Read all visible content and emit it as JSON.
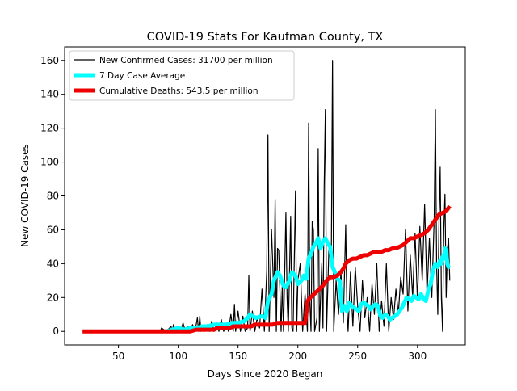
{
  "chart_data": {
    "type": "line",
    "title": "COVID-19 Stats For Kaufman County, TX",
    "xlabel": "Days Since 2020 Began",
    "ylabel": "New COVID-19 Cases",
    "xlim": [
      5,
      340
    ],
    "ylim": [
      -8,
      168
    ],
    "xticks": [
      50,
      100,
      150,
      200,
      250,
      300
    ],
    "yticks": [
      0,
      20,
      40,
      60,
      80,
      100,
      120,
      140,
      160
    ],
    "grid": false,
    "legend_position": "top-left",
    "series": [
      {
        "name": "New Confirmed Cases: 31700 per million",
        "color": "#000000",
        "line_width": "thin",
        "x": [
          20,
          85,
          86,
          90,
          94,
          95,
          96,
          98,
          100,
          102,
          104,
          106,
          108,
          110,
          112,
          114,
          116,
          117,
          118,
          119,
          120,
          122,
          124,
          126,
          128,
          130,
          132,
          134,
          136,
          138,
          140,
          142,
          144,
          146,
          147,
          148,
          150,
          152,
          154,
          156,
          158,
          159,
          160,
          162,
          164,
          166,
          168,
          170,
          172,
          174,
          175,
          176,
          178,
          180,
          181,
          182,
          183,
          184,
          186,
          187,
          188,
          190,
          191,
          192,
          194,
          195,
          196,
          198,
          199,
          200,
          202,
          204,
          206,
          208,
          209,
          210,
          211,
          212,
          213,
          214,
          216,
          217,
          218,
          220,
          221,
          222,
          223,
          224,
          226,
          228,
          229,
          230,
          232,
          234,
          236,
          238,
          240,
          241,
          242,
          244,
          246,
          248,
          250,
          252,
          254,
          256,
          258,
          260,
          262,
          264,
          266,
          268,
          270,
          272,
          274,
          276,
          278,
          280,
          282,
          284,
          286,
          288,
          290,
          292,
          294,
          296,
          298,
          300,
          302,
          304,
          306,
          308,
          310,
          312,
          314,
          315,
          316,
          317,
          318,
          319,
          320,
          321,
          322,
          323,
          324,
          325,
          326,
          327
        ],
        "values": [
          0,
          0,
          2,
          0,
          3,
          0,
          4,
          0,
          2,
          0,
          5,
          0,
          3,
          0,
          4,
          0,
          8,
          0,
          9,
          0,
          3,
          0,
          4,
          0,
          6,
          0,
          5,
          0,
          7,
          0,
          4,
          0,
          10,
          0,
          16,
          0,
          12,
          0,
          9,
          0,
          2,
          33,
          0,
          12,
          0,
          8,
          2,
          25,
          0,
          36,
          116,
          0,
          60,
          20,
          78,
          0,
          49,
          48,
          0,
          28,
          0,
          70,
          20,
          0,
          68,
          2,
          0,
          83,
          0,
          30,
          40,
          0,
          22,
          0,
          123,
          18,
          0,
          65,
          60,
          0,
          8,
          108,
          0,
          40,
          2,
          85,
          131,
          0,
          50,
          45,
          160,
          0,
          30,
          10,
          35,
          5,
          63,
          15,
          0,
          35,
          3,
          38,
          15,
          0,
          30,
          8,
          20,
          0,
          28,
          10,
          40,
          0,
          18,
          3,
          40,
          0,
          20,
          7,
          25,
          10,
          32,
          22,
          60,
          12,
          45,
          20,
          58,
          18,
          62,
          30,
          75,
          22,
          55,
          20,
          67,
          131,
          40,
          10,
          65,
          97,
          20,
          0,
          60,
          81,
          20,
          48,
          55,
          30
        ]
      },
      {
        "name": "7 Day Case Average",
        "color": "#00ffff",
        "line_width": "thick",
        "x": [
          90,
          95,
          100,
          105,
          110,
          115,
          120,
          125,
          130,
          135,
          140,
          145,
          150,
          155,
          158,
          160,
          162,
          165,
          170,
          173,
          175,
          178,
          180,
          183,
          185,
          188,
          190,
          193,
          195,
          198,
          200,
          203,
          205,
          207,
          209,
          211,
          213,
          215,
          217,
          219,
          221,
          223,
          225,
          227,
          229,
          231,
          233,
          235,
          237,
          239,
          241,
          243,
          245,
          247,
          249,
          251,
          253,
          255,
          257,
          259,
          261,
          263,
          265,
          267,
          269,
          271,
          273,
          275,
          277,
          279,
          281,
          283,
          285,
          287,
          289,
          291,
          293,
          295,
          297,
          299,
          301,
          303,
          305,
          307,
          309,
          311,
          313,
          315,
          317,
          319,
          320,
          321,
          322,
          323,
          324,
          325,
          326,
          327
        ],
        "values": [
          0,
          1,
          2,
          1,
          2,
          2,
          3,
          3,
          4,
          4,
          4,
          5,
          5,
          6,
          8,
          10,
          9,
          8,
          9,
          8,
          18,
          22,
          30,
          35,
          33,
          27,
          26,
          30,
          35,
          33,
          28,
          30,
          33,
          31,
          43,
          46,
          50,
          52,
          55,
          49,
          53,
          55,
          52,
          50,
          38,
          35,
          31,
          30,
          12,
          15,
          12,
          17,
          15,
          14,
          13,
          12,
          16,
          17,
          16,
          15,
          13,
          15,
          16,
          15,
          9,
          8,
          10,
          9,
          7,
          8,
          9,
          10,
          12,
          14,
          17,
          20,
          19,
          18,
          21,
          20,
          19,
          22,
          19,
          18,
          24,
          28,
          36,
          40,
          38,
          42,
          40,
          44,
          43,
          49,
          48,
          40,
          38,
          38
        ]
      },
      {
        "name": "Cumulative Deaths: 543.5 per million",
        "color": "#ee0000",
        "line_width": "thick",
        "x": [
          20,
          110,
          115,
          118,
          121,
          124,
          127,
          130,
          133,
          136,
          140,
          143,
          146,
          149,
          152,
          155,
          158,
          161,
          164,
          167,
          170,
          173,
          176,
          179,
          182,
          185,
          188,
          191,
          194,
          197,
          200,
          203,
          206,
          207,
          208,
          209,
          212,
          215,
          218,
          221,
          224,
          227,
          230,
          233,
          236,
          238,
          240,
          243,
          246,
          249,
          252,
          255,
          258,
          261,
          264,
          267,
          270,
          273,
          276,
          279,
          282,
          285,
          288,
          291,
          294,
          297,
          300,
          303,
          306,
          309,
          312,
          315,
          318,
          321,
          324,
          326,
          327
        ],
        "values": [
          0,
          0,
          1,
          1,
          1,
          1,
          1,
          1,
          2,
          2,
          2,
          2,
          3,
          3,
          3,
          3,
          3,
          3,
          4,
          4,
          4,
          4,
          4,
          4,
          5,
          5,
          5,
          5,
          5,
          5,
          5,
          5,
          5,
          10,
          17,
          19,
          21,
          23,
          25,
          27,
          30,
          32,
          32,
          33,
          35,
          37,
          40,
          42,
          43,
          43,
          44,
          45,
          45,
          46,
          47,
          47,
          47,
          48,
          48,
          49,
          49,
          50,
          51,
          53,
          55,
          55,
          56,
          57,
          58,
          60,
          63,
          66,
          69,
          70,
          71,
          73,
          74
        ]
      }
    ]
  }
}
